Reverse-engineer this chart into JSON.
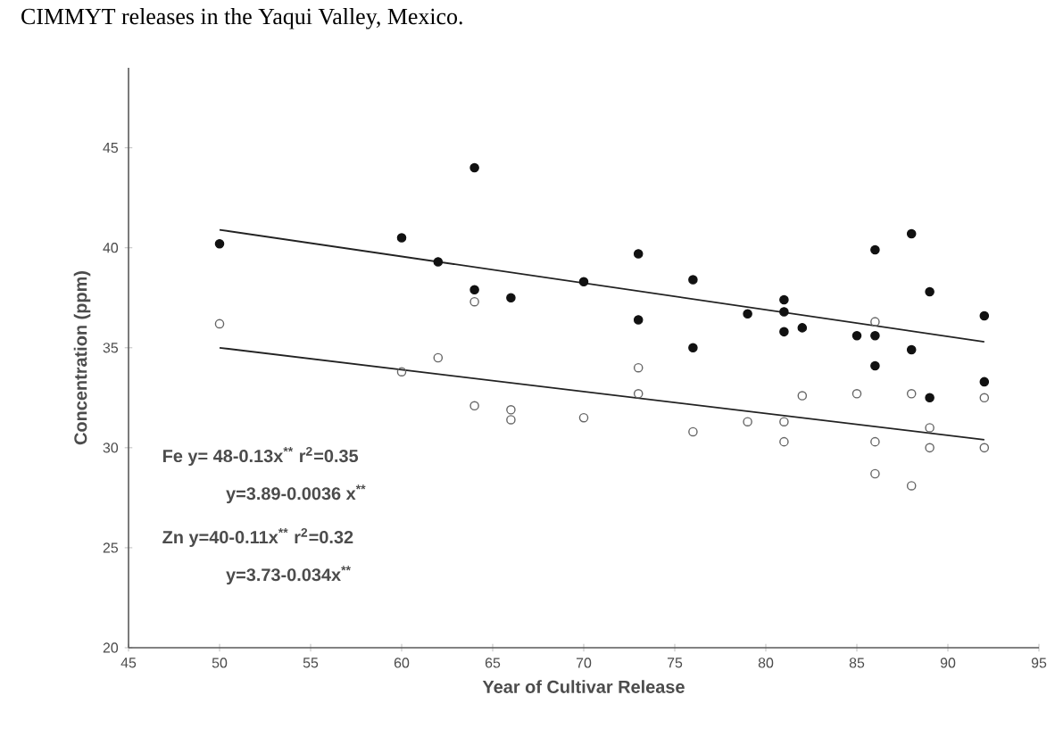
{
  "chart_data": {
    "type": "scatter",
    "title": "CIMMYT releases in the Yaqui Valley, Mexico.",
    "xlabel": "Year of Cultivar Release",
    "ylabel": "Concentration (ppm)",
    "xlim": [
      45,
      95
    ],
    "xticks": [
      45,
      50,
      55,
      60,
      65,
      70,
      75,
      80,
      85,
      90,
      95
    ],
    "ylim": [
      20,
      49
    ],
    "yticks": [
      20,
      25,
      30,
      35,
      40,
      45
    ],
    "marker": "circle",
    "series": [
      {
        "color": "#111111",
        "x": [
          50,
          60,
          62,
          64,
          64,
          66,
          70,
          73,
          73,
          76,
          76,
          79,
          81,
          81,
          81,
          82,
          85,
          86,
          86,
          86,
          88,
          88,
          89,
          89,
          92,
          92
        ],
        "values": [
          40.2,
          40.5,
          39.3,
          44.0,
          37.9,
          37.5,
          38.3,
          39.7,
          36.4,
          38.4,
          35.0,
          36.7,
          37.4,
          36.8,
          35.8,
          36.0,
          35.6,
          35.6,
          39.9,
          34.1,
          40.7,
          34.9,
          37.8,
          32.5,
          36.6,
          33.3
        ]
      },
      {
        "color": "#666666",
        "marker": "circle_open",
        "x": [
          50,
          60,
          62,
          64,
          64,
          66,
          66,
          70,
          73,
          73,
          76,
          79,
          81,
          81,
          82,
          85,
          86,
          86,
          86,
          88,
          88,
          89,
          89,
          92,
          92
        ],
        "values": [
          36.2,
          33.8,
          34.5,
          37.3,
          32.1,
          31.9,
          31.4,
          31.5,
          34.0,
          32.7,
          30.8,
          31.3,
          31.3,
          30.3,
          32.6,
          32.7,
          36.3,
          30.3,
          28.7,
          32.7,
          28.1,
          31.0,
          30.0,
          32.5,
          30.0
        ]
      },
      {
        "type": "line",
        "color": "#222222",
        "marker": "none",
        "x": [
          50,
          92
        ],
        "values": [
          40.9,
          35.3
        ]
      },
      {
        "type": "line",
        "color": "#222222",
        "marker": "none",
        "x": [
          50,
          92
        ],
        "values": [
          35.0,
          30.4
        ]
      }
    ],
    "annotations": [
      "Fe y= 48-0.13x$^{**}$  r$^{2}$=0.35",
      "y=3.89-0.0036 x$^{**}$",
      "Zn y=40-0.11x$^{**}$ r$^{2}$=0.32",
      "y=3.73-0.034x$^{**}$"
    ]
  }
}
